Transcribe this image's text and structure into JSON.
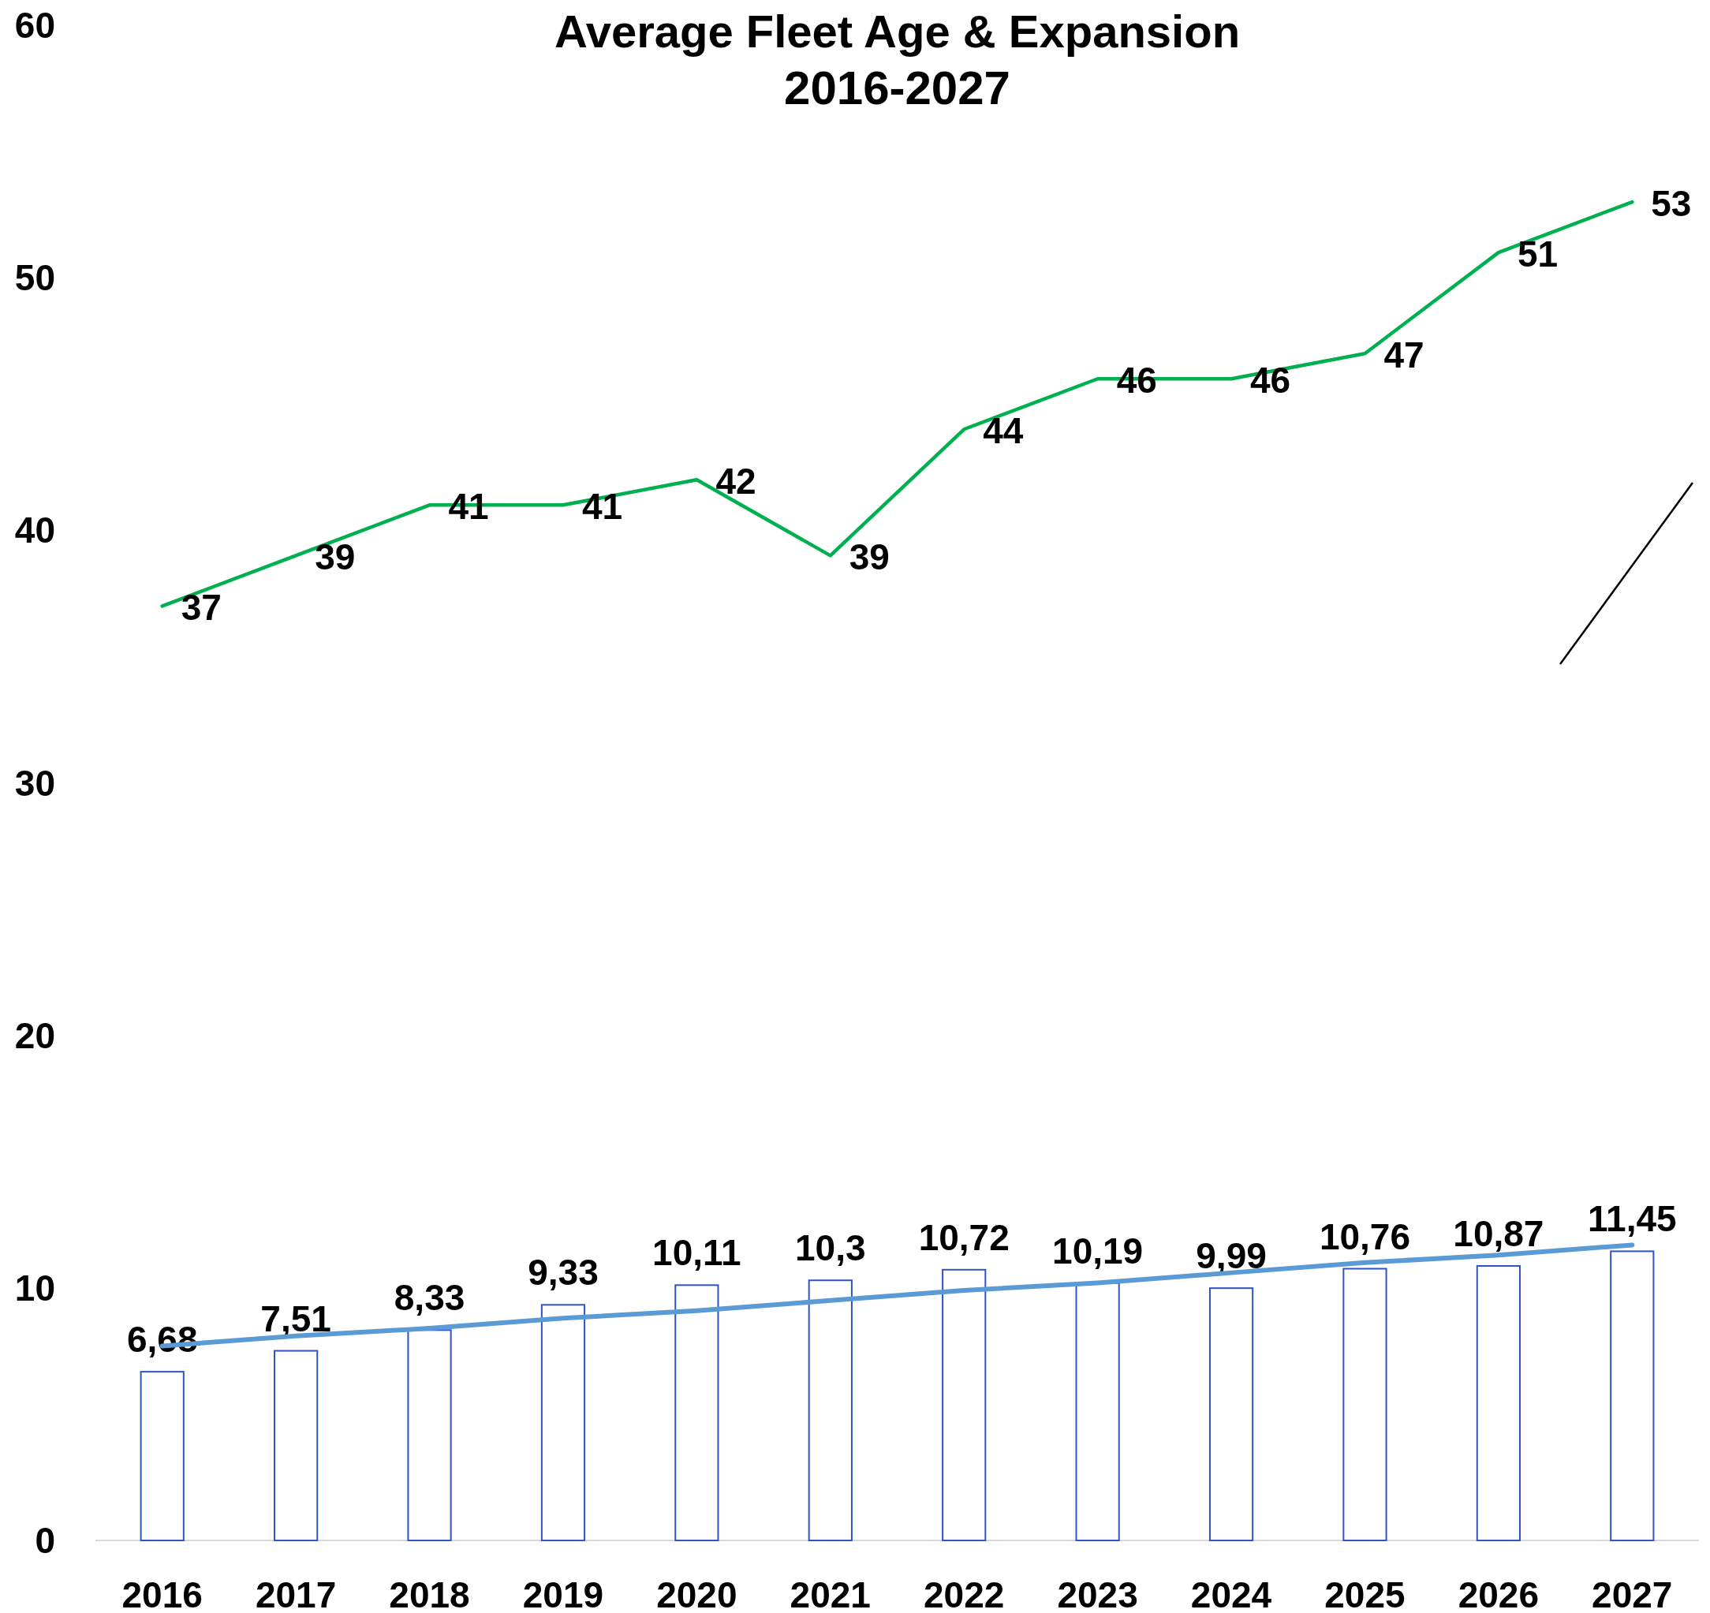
{
  "chart_data": {
    "type": "bar",
    "title": "Average Fleet Age & Expansion",
    "subtitle": "2016-2027",
    "categories": [
      "2016",
      "2017",
      "2018",
      "2019",
      "2020",
      "2021",
      "2022",
      "2023",
      "2024",
      "2025",
      "2026",
      "2027"
    ],
    "ylim": [
      0,
      60
    ],
    "yticks": [
      0,
      10,
      20,
      30,
      40,
      50,
      60
    ],
    "series": [
      {
        "color": "#2f54c8",
        "values": [
          6.68,
          7.51,
          8.33,
          9.33,
          10.11,
          10.3,
          10.72,
          10.19,
          9.99,
          10.76,
          10.87,
          11.45
        ],
        "value_labels": [
          "6,68",
          "7,51",
          "8,33",
          "9,33",
          "10,11",
          "10,3",
          "10,72",
          "10,19",
          "9,99",
          "10,76",
          "10,87",
          "11,45"
        ]
      },
      {
        "type": "line",
        "color": "#5b9bd5",
        "values": [
          7.7,
          8.1,
          8.4,
          8.8,
          9.1,
          9.5,
          9.9,
          10.2,
          10.6,
          11.0,
          11.3,
          11.7
        ]
      },
      {
        "type": "line",
        "color": "#00b050",
        "values": [
          37,
          39,
          41,
          41,
          42,
          39,
          44,
          46,
          46,
          47,
          51,
          53
        ],
        "value_labels": [
          "37",
          "39",
          "41",
          "41",
          "42",
          "39",
          "44",
          "46",
          "46",
          "47",
          "51",
          "53"
        ]
      }
    ]
  }
}
